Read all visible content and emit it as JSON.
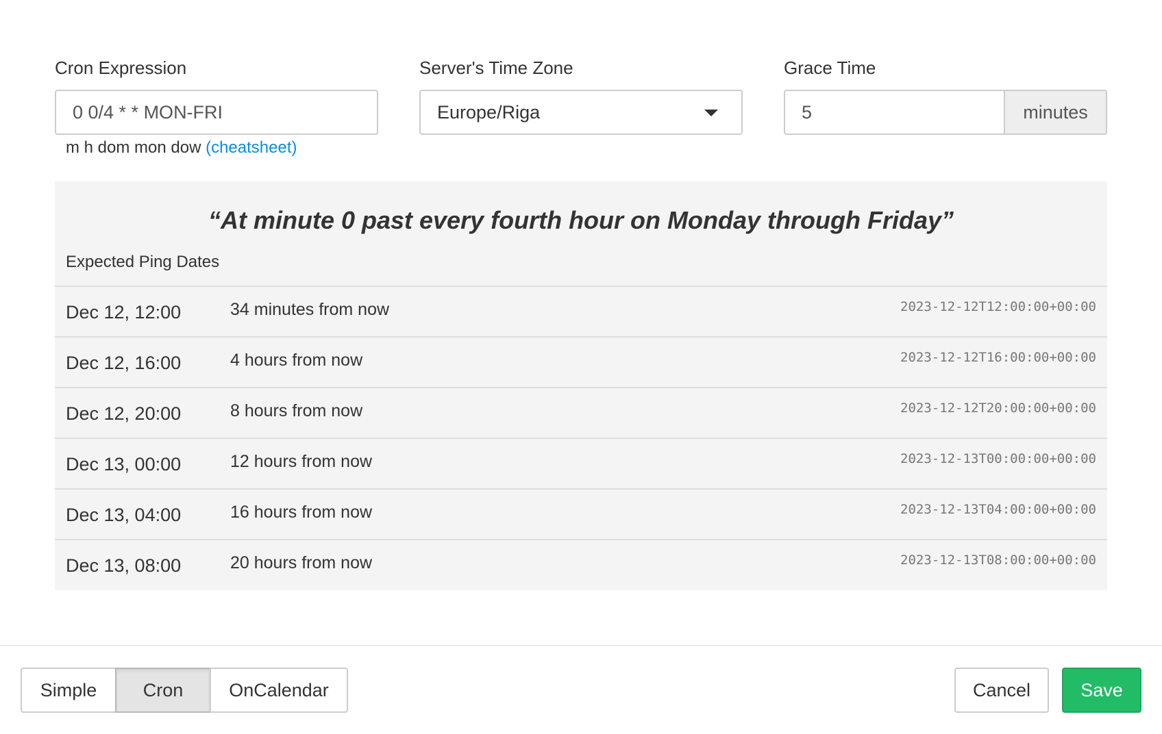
{
  "form": {
    "cron_label": "Cron Expression",
    "cron_value": "0 0/4 * * MON-FRI",
    "tz_label": "Server's Time Zone",
    "tz_value": "Europe/Riga",
    "grace_label": "Grace Time",
    "grace_value": "5",
    "grace_unit": "minutes",
    "help_text": "m h dom mon dow",
    "help_link": "(cheatsheet)"
  },
  "preview": {
    "description": "“At minute 0 past every fourth hour on Monday through Friday”",
    "heading": "Expected Ping Dates",
    "rows": [
      {
        "date": "Dec 12, 12:00",
        "relative": "34 minutes from now",
        "iso": "2023-12-12T12:00:00+00:00"
      },
      {
        "date": "Dec 12, 16:00",
        "relative": "4 hours from now",
        "iso": "2023-12-12T16:00:00+00:00"
      },
      {
        "date": "Dec 12, 20:00",
        "relative": "8 hours from now",
        "iso": "2023-12-12T20:00:00+00:00"
      },
      {
        "date": "Dec 13, 00:00",
        "relative": "12 hours from now",
        "iso": "2023-12-13T00:00:00+00:00"
      },
      {
        "date": "Dec 13, 04:00",
        "relative": "16 hours from now",
        "iso": "2023-12-13T04:00:00+00:00"
      },
      {
        "date": "Dec 13, 08:00",
        "relative": "20 hours from now",
        "iso": "2023-12-13T08:00:00+00:00"
      }
    ]
  },
  "footer": {
    "modes": [
      "Simple",
      "Cron",
      "OnCalendar"
    ],
    "active_mode": "Cron",
    "cancel": "Cancel",
    "save": "Save"
  },
  "colors": {
    "accent_link": "#0a8ee0",
    "save": "#22bb66"
  }
}
